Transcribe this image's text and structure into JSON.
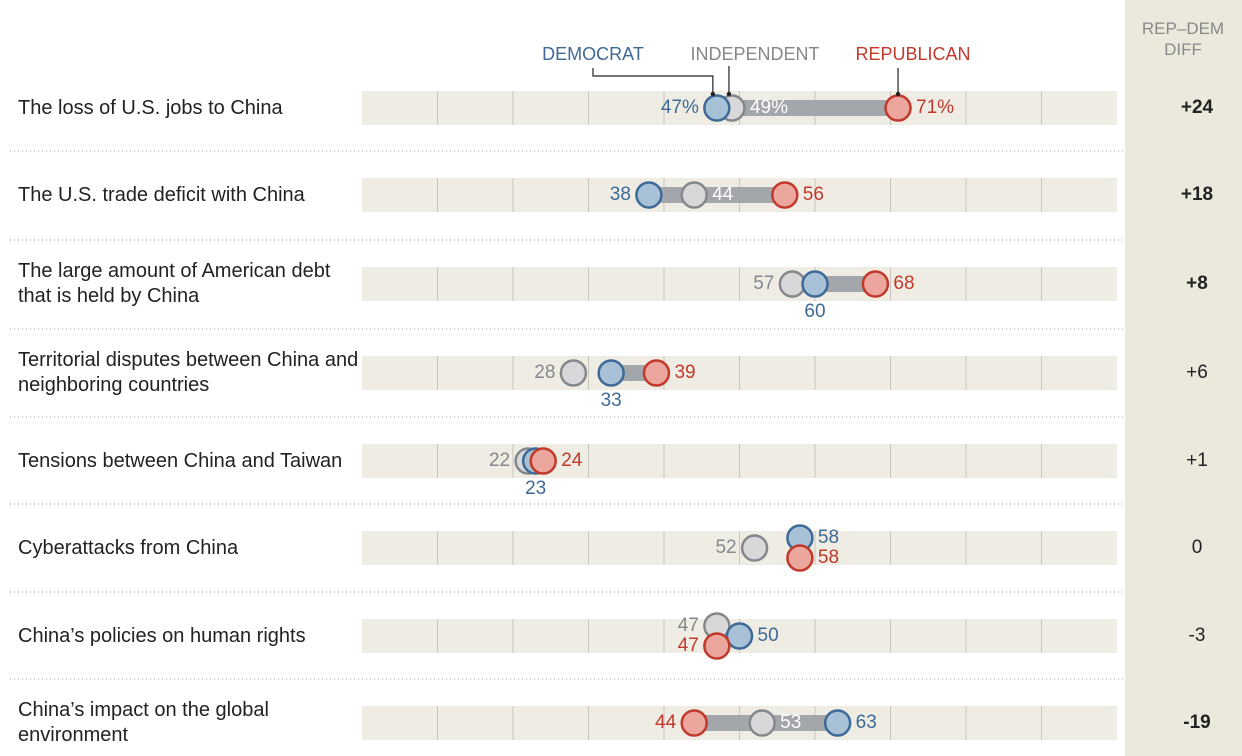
{
  "chart_data": {
    "type": "dot",
    "categories": [
      "The loss of U.S. jobs to China",
      "The U.S. trade deficit with China",
      "The large amount of American debt that is held by China",
      "Territorial disputes between China and neighboring countries",
      "Tensions between China and Taiwan",
      "Cyberattacks from China",
      "China’s policies on human rights",
      "China’s impact on the global environment"
    ],
    "series": [
      {
        "name": "DEMOCRAT",
        "color": "#3d6a96",
        "fill": "#a9c1d6",
        "values": [
          47,
          38,
          60,
          33,
          23,
          58,
          50,
          63
        ],
        "value_labels": [
          "47%",
          "38",
          "60",
          "33",
          "23",
          "58",
          "50",
          "63"
        ]
      },
      {
        "name": "INDEPENDENT",
        "color": "#85878c",
        "fill": "#d8d8da",
        "values": [
          49,
          44,
          57,
          28,
          22,
          52,
          47,
          53
        ],
        "value_labels": [
          "49%",
          "44",
          "57",
          "28",
          "22",
          "52",
          "47",
          "53"
        ]
      },
      {
        "name": "REPUBLICAN",
        "color": "#c0392b",
        "fill": "#eba69d",
        "values": [
          71,
          56,
          68,
          39,
          24,
          58,
          47,
          44
        ],
        "value_labels": [
          "71%",
          "56",
          "68",
          "39",
          "24",
          "58",
          "47",
          "44"
        ]
      }
    ],
    "xlim": [
      0,
      100
    ],
    "xticks": [
      10,
      20,
      30,
      40,
      50,
      60,
      70,
      80,
      90
    ],
    "diff": {
      "title": "REP–DEM DIFF",
      "values": [
        24,
        18,
        8,
        6,
        1,
        0,
        -3,
        -19
      ],
      "value_labels": [
        "+24",
        "+18",
        "+8",
        "+6",
        "+1",
        "0",
        "-3",
        "-19"
      ],
      "bold": [
        true,
        true,
        true,
        false,
        false,
        false,
        false,
        true
      ]
    }
  }
}
